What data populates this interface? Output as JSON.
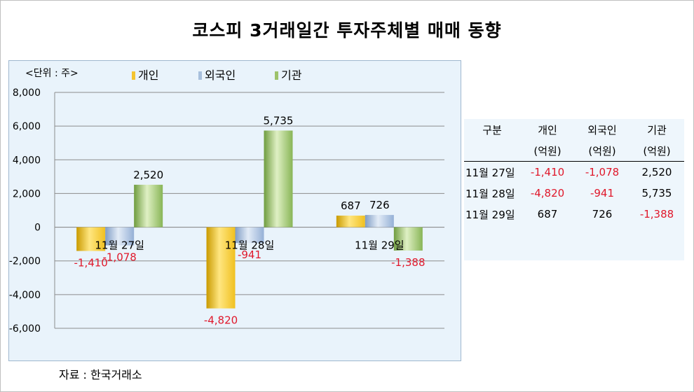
{
  "title": "코스피 3거래일간 투자주체별 매매 동향",
  "unit_label": "<단위 : 주>",
  "source": "자료 : 한국거래소",
  "colors": {
    "individual": "#f4c430",
    "foreign": "#a7bfdc",
    "institution": "#9dc26b",
    "negative_text": "#e0182b"
  },
  "chart_data": {
    "type": "bar",
    "categories": [
      "11월 27일",
      "11월 28일",
      "11월 29일"
    ],
    "series": [
      {
        "name": "개인",
        "values": [
          -1410,
          -4820,
          687
        ],
        "labels": [
          "-1,410",
          "-4,820",
          "687"
        ]
      },
      {
        "name": "외국인",
        "values": [
          -1078,
          -941,
          726
        ],
        "labels": [
          "-1,078",
          "-941",
          "726"
        ]
      },
      {
        "name": "기관",
        "values": [
          2520,
          5735,
          -1388
        ],
        "labels": [
          "2,520",
          "5,735",
          "-1,388"
        ]
      }
    ],
    "y_ticks": [
      "8,000",
      "6,000",
      "4,000",
      "2,000",
      "0",
      "-2,000",
      "-4,000",
      "-6,000"
    ],
    "ylim": [
      -6000,
      8000
    ],
    "grid": true,
    "legend": "top"
  },
  "table": {
    "headers": [
      {
        "top": "구분",
        "bottom": ""
      },
      {
        "top": "개인",
        "bottom": "(억원)"
      },
      {
        "top": "외국인",
        "bottom": "(억원)"
      },
      {
        "top": "기관",
        "bottom": "(억원)"
      }
    ],
    "rows": [
      [
        "11월 27일",
        "-1,410",
        "-1,078",
        "2,520"
      ],
      [
        "11월 28일",
        "-4,820",
        "-941",
        "5,735"
      ],
      [
        "11월 29일",
        "687",
        "726",
        "-1,388"
      ]
    ]
  }
}
